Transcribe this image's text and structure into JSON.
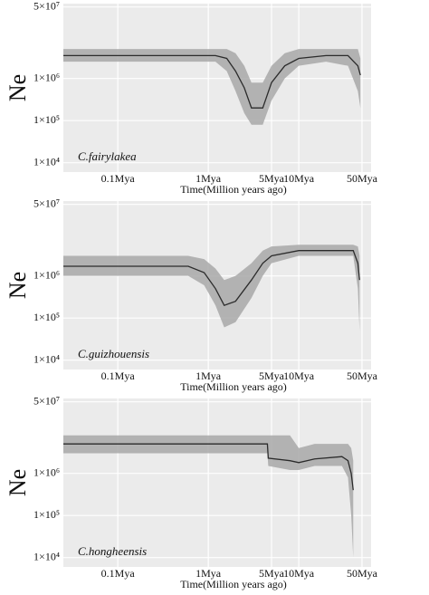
{
  "chart_data": [
    {
      "type": "line",
      "annotation": "C.fairylakea",
      "ylabel": "Ne",
      "xlabel": "Time(Million  years ago)",
      "xscale": "log",
      "yscale": "log",
      "grid": true,
      "line_color": "#2b2b2b",
      "band_color": "#a8a8a8",
      "background": "#ebebeb",
      "xlim": [
        0.025,
        63
      ],
      "ylim": [
        6000,
        60000000
      ],
      "xticks": [
        {
          "value": 0.1,
          "label": "0.1Mya"
        },
        {
          "value": 1,
          "label": "1Mya"
        },
        {
          "value": 5,
          "label": "5Mya"
        },
        {
          "value": 10,
          "label": "10Mya"
        },
        {
          "value": 50,
          "label": "50Mya"
        }
      ],
      "yticks": [
        {
          "value": 50000000,
          "label": "5×10⁷"
        },
        {
          "value": 1000000,
          "label": "1×10⁶"
        },
        {
          "value": 100000,
          "label": "1×10⁵"
        },
        {
          "value": 10000,
          "label": "1×10⁴"
        }
      ],
      "x": [
        0.025,
        1.2,
        1.6,
        2,
        2.5,
        3,
        4,
        5,
        7,
        10,
        20,
        35,
        45,
        48
      ],
      "values": [
        3500000,
        3500000,
        3000000,
        1500000,
        600000,
        200000,
        200000,
        800000,
        2000000,
        3000000,
        3500000,
        3500000,
        2000000,
        1200000
      ],
      "lower": [
        2500000,
        2500000,
        1500000,
        500000,
        150000,
        80000,
        80000,
        300000,
        1000000,
        2000000,
        2500000,
        2000000,
        500000,
        200000
      ],
      "upper": [
        5000000,
        5000000,
        5000000,
        4000000,
        2000000,
        800000,
        800000,
        2000000,
        4000000,
        5000000,
        5000000,
        5000000,
        5000000,
        3000000
      ]
    },
    {
      "type": "line",
      "annotation": "C.guizhouensis",
      "ylabel": "Ne",
      "xlabel": "Time(Million  years ago)",
      "xscale": "log",
      "yscale": "log",
      "grid": true,
      "line_color": "#2b2b2b",
      "band_color": "#a8a8a8",
      "background": "#ebebeb",
      "xlim": [
        0.025,
        63
      ],
      "ylim": [
        6000,
        60000000
      ],
      "xticks": [
        {
          "value": 0.1,
          "label": "0.1Mya"
        },
        {
          "value": 1,
          "label": "1Mya"
        },
        {
          "value": 5,
          "label": "5Mya"
        },
        {
          "value": 10,
          "label": "10Mya"
        },
        {
          "value": 50,
          "label": "50Mya"
        }
      ],
      "yticks": [
        {
          "value": 50000000,
          "label": "5×10⁷"
        },
        {
          "value": 1000000,
          "label": "1×10⁶"
        },
        {
          "value": 100000,
          "label": "1×10⁵"
        },
        {
          "value": 10000,
          "label": "1×10⁴"
        }
      ],
      "x": [
        0.025,
        0.6,
        0.9,
        1.2,
        1.5,
        2,
        3,
        4,
        5,
        10,
        40,
        45,
        47
      ],
      "values": [
        1700000,
        1700000,
        1200000,
        500000,
        200000,
        250000,
        800000,
        2000000,
        3000000,
        4000000,
        4000000,
        2000000,
        800000
      ],
      "lower": [
        1000000,
        1000000,
        600000,
        200000,
        60000,
        80000,
        300000,
        1000000,
        2000000,
        3000000,
        3000000,
        500000,
        50000
      ],
      "upper": [
        3000000,
        3000000,
        2500000,
        1500000,
        800000,
        1000000,
        2000000,
        4000000,
        5000000,
        5500000,
        5500000,
        5000000,
        3000000
      ]
    },
    {
      "type": "line",
      "annotation": "C.hongheensis",
      "ylabel": "Ne",
      "xlabel": "Time(Million  years ago)",
      "xscale": "log",
      "yscale": "log",
      "grid": true,
      "line_color": "#2b2b2b",
      "band_color": "#a8a8a8",
      "background": "#ebebeb",
      "xlim": [
        0.025,
        63
      ],
      "ylim": [
        6000,
        60000000
      ],
      "xticks": [
        {
          "value": 0.1,
          "label": "0.1Mya"
        },
        {
          "value": 1,
          "label": "1Mya"
        },
        {
          "value": 5,
          "label": "5Mya"
        },
        {
          "value": 10,
          "label": "10Mya"
        },
        {
          "value": 50,
          "label": "50Mya"
        }
      ],
      "yticks": [
        {
          "value": 50000000,
          "label": "5×10⁷"
        },
        {
          "value": 1000000,
          "label": "1×10⁶"
        },
        {
          "value": 100000,
          "label": "1×10⁵"
        },
        {
          "value": 10000,
          "label": "1×10⁴"
        }
      ],
      "x": [
        0.025,
        4.5,
        4.6,
        8,
        10,
        15,
        30,
        35,
        38,
        40
      ],
      "values": [
        5000000,
        5000000,
        2300000,
        2000000,
        1800000,
        2200000,
        2500000,
        2000000,
        1000000,
        400000
      ],
      "lower": [
        3000000,
        3000000,
        1500000,
        1200000,
        1200000,
        1500000,
        1500000,
        800000,
        100000,
        10000
      ],
      "upper": [
        8000000,
        8000000,
        8000000,
        8000000,
        4000000,
        5000000,
        5000000,
        5000000,
        4000000,
        2000000
      ]
    }
  ]
}
